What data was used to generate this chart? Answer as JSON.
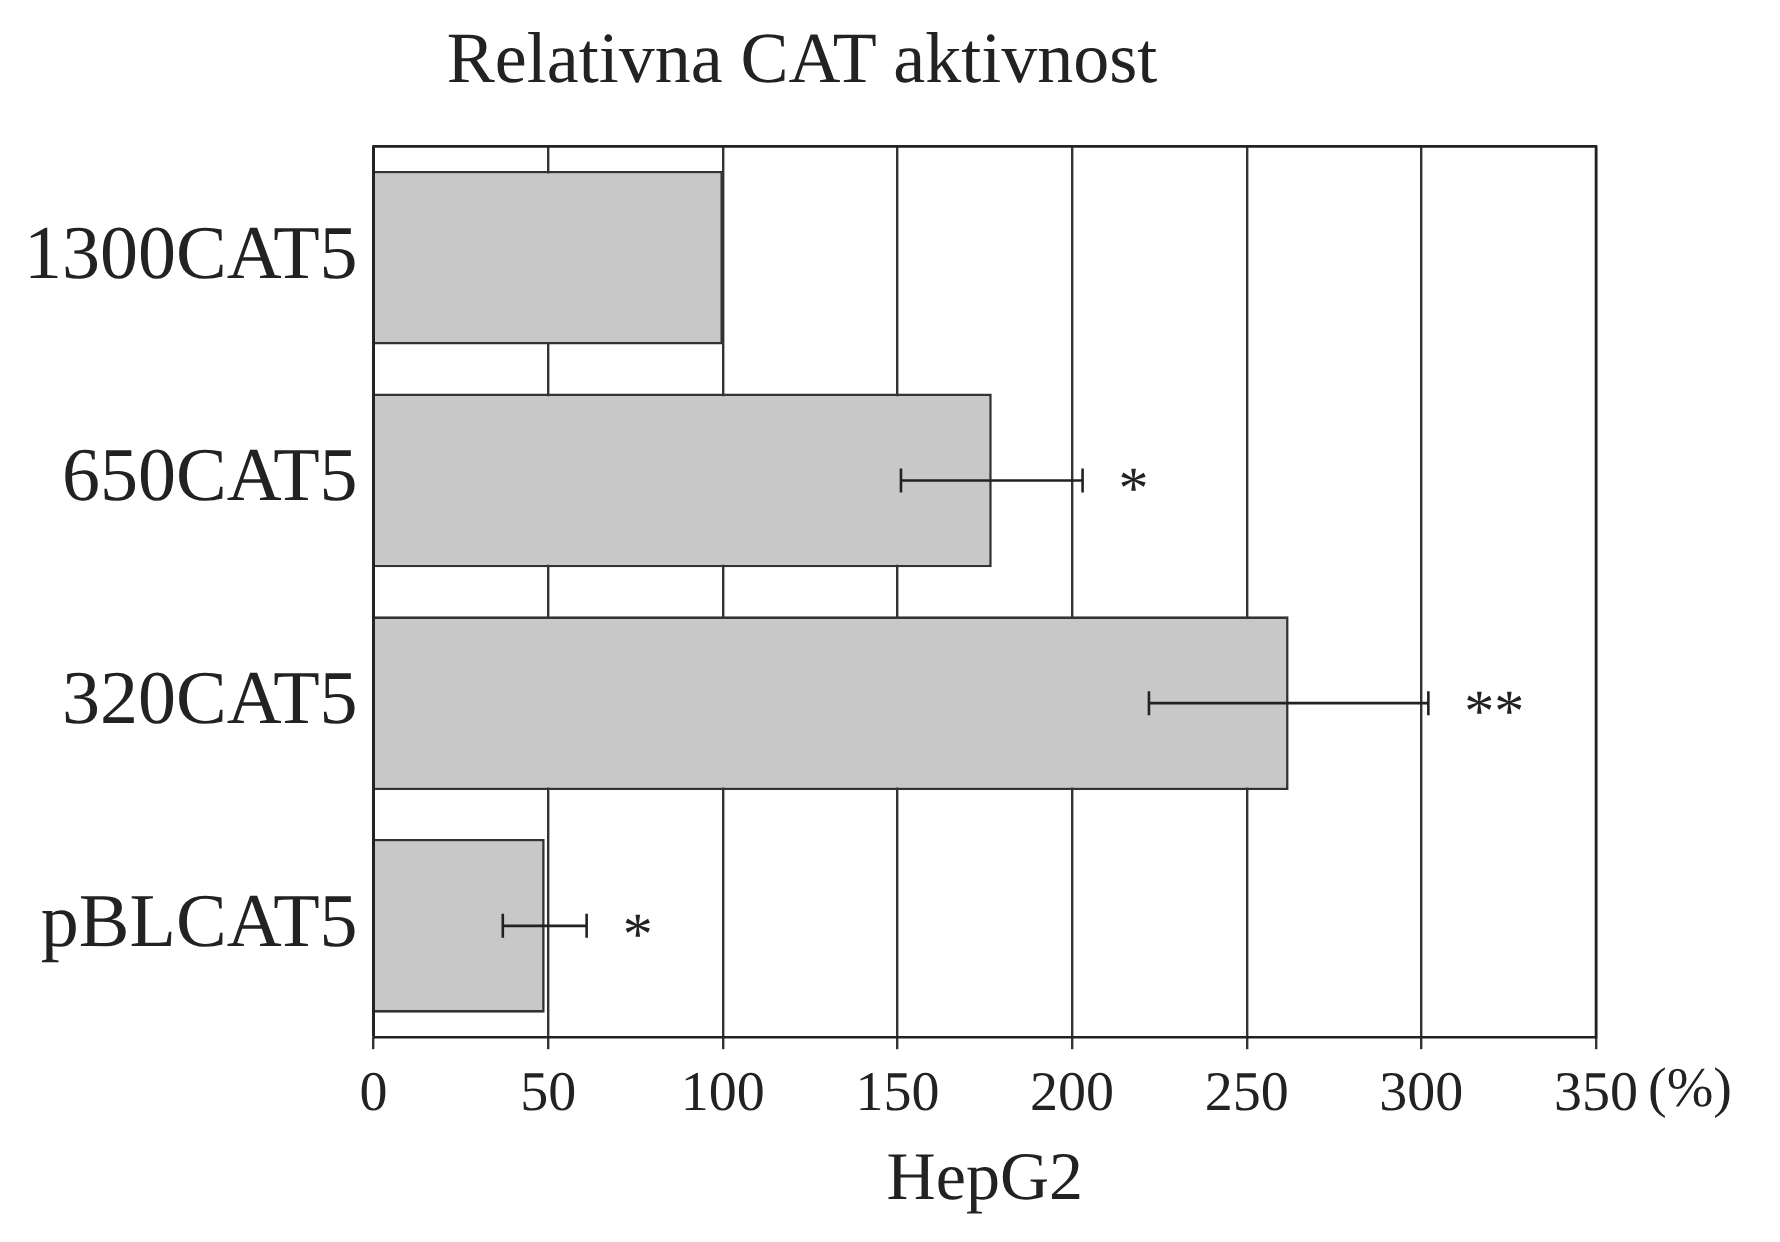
{
  "chart_data": {
    "type": "bar",
    "orientation": "horizontal",
    "title": "Relativna CAT aktivnost",
    "xlabel": "HepG2",
    "categories": [
      "1300CAT5",
      "650CAT5",
      "320CAT5",
      "pBLCAT5"
    ],
    "values": [
      100,
      177,
      262,
      49
    ],
    "errors": [
      null,
      26,
      40,
      12
    ],
    "color": "#c8c8c8",
    "xlim": [
      0,
      350
    ],
    "xticks": [
      0,
      50,
      100,
      150,
      200,
      250,
      300,
      350
    ],
    "grid": "x",
    "legend": false,
    "annotations": [
      "*",
      "**",
      "*",
      "(%)"
    ]
  }
}
